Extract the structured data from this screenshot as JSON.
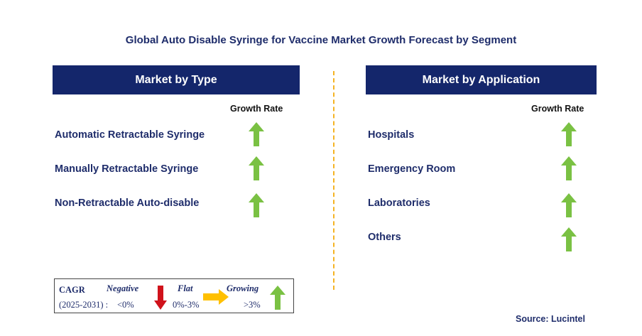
{
  "title": "Global Auto Disable Syringe for Vaccine Market Growth Forecast by Segment",
  "type_panel": {
    "header": "Market by Type",
    "growth_label": "Growth Rate",
    "segments": [
      {
        "label": "Automatic Retractable Syringe",
        "trend": "growing"
      },
      {
        "label": "Manually Retractable Syringe",
        "trend": "growing"
      },
      {
        "label": "Non-Retractable Auto-disable",
        "trend": "growing"
      }
    ]
  },
  "application_panel": {
    "header": "Market by Application",
    "growth_label": "Growth Rate",
    "segments": [
      {
        "label": "Hospitals",
        "trend": "growing"
      },
      {
        "label": "Emergency Room",
        "trend": "growing"
      },
      {
        "label": "Laboratories",
        "trend": "growing"
      },
      {
        "label": "Others",
        "trend": "growing"
      }
    ]
  },
  "legend": {
    "cagr_label": "CAGR",
    "period_label": "(2025-2031) :",
    "negative": {
      "label": "Negative",
      "value": "<0%",
      "icon": "red-down-arrow-icon"
    },
    "flat": {
      "label": "Flat",
      "value": "0%-3%",
      "icon": "yellow-right-arrow-icon"
    },
    "growing": {
      "label": "Growing",
      "value": ">3%",
      "icon": "green-up-arrow-icon"
    }
  },
  "source": "Source: Lucintel",
  "colors": {
    "header_bg": "#14266b",
    "text_navy": "#1f2d6b",
    "growing_green": "#7ac143",
    "negative_red": "#d0121b",
    "flat_yellow": "#ffc000",
    "divider": "#f5b323"
  }
}
